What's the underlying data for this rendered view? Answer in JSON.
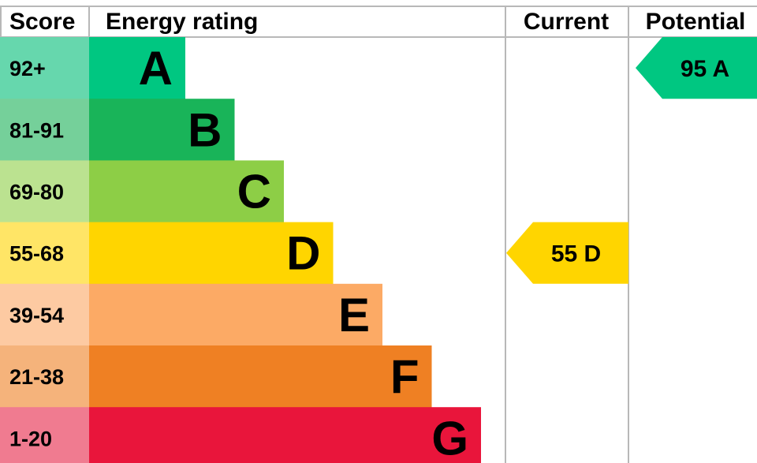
{
  "header": {
    "score": "Score",
    "rating": "Energy rating",
    "current": "Current",
    "potential": "Potential"
  },
  "chart_data": {
    "type": "bar",
    "bands": [
      {
        "letter": "A",
        "range": "92+",
        "color": "#00c781",
        "score_bg": "#66d7ad"
      },
      {
        "letter": "B",
        "range": "81-91",
        "color": "#19b459",
        "score_bg": "#75d09a"
      },
      {
        "letter": "C",
        "range": "69-80",
        "color": "#8dce46",
        "score_bg": "#bbe290"
      },
      {
        "letter": "D",
        "range": "55-68",
        "color": "#ffd500",
        "score_bg": "#ffe566"
      },
      {
        "letter": "E",
        "range": "39-54",
        "color": "#fcaa65",
        "score_bg": "#fdcaa2"
      },
      {
        "letter": "F",
        "range": "21-38",
        "color": "#ef8023",
        "score_bg": "#f5b37b"
      },
      {
        "letter": "G",
        "range": "1-20",
        "color": "#e9153b",
        "score_bg": "#f07b90"
      }
    ],
    "current": {
      "value": 55,
      "letter": "D",
      "label": "55 D",
      "color": "#ffd500"
    },
    "potential": {
      "value": 95,
      "letter": "A",
      "label": "95 A",
      "color": "#00c781"
    }
  }
}
